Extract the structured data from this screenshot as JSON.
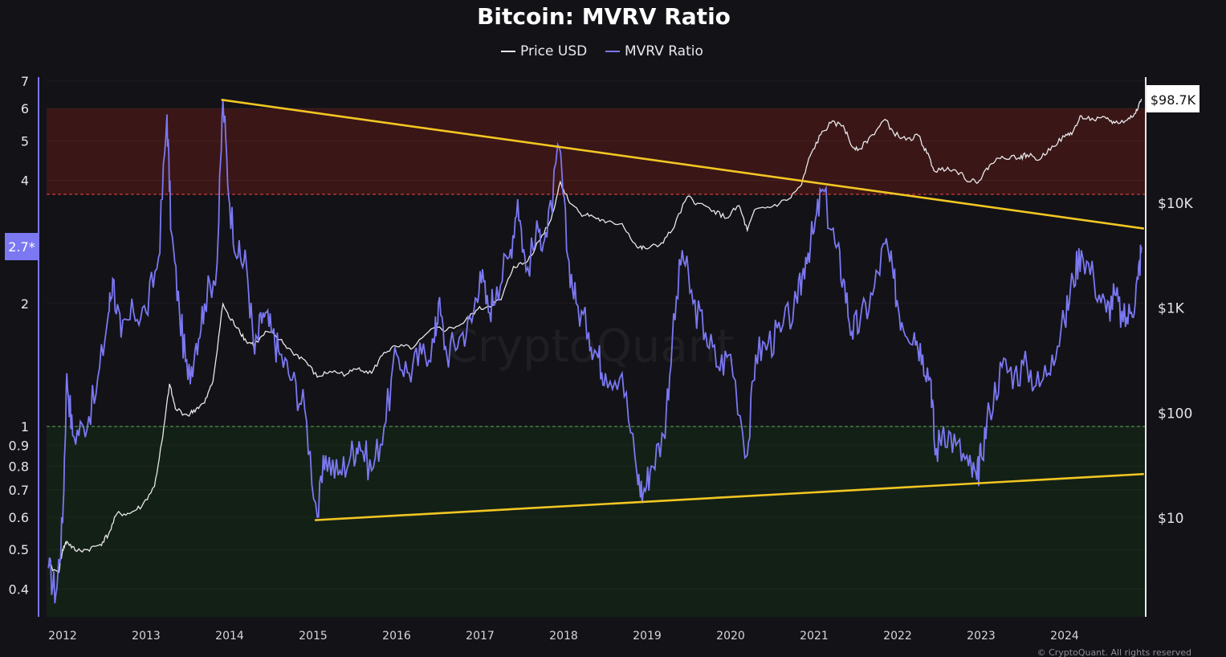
{
  "chart_data": {
    "type": "line",
    "title": "Bitcoin: MVRV Ratio",
    "legend": [
      "Price USD",
      "MVRV Ratio"
    ],
    "legend_position": "top-center",
    "x_ticks": [
      "2012",
      "2013",
      "2014",
      "2015",
      "2016",
      "2017",
      "2018",
      "2019",
      "2020",
      "2021",
      "2022",
      "2023",
      "2024"
    ],
    "xlim": [
      2011.8,
      2024.95
    ],
    "y_left": {
      "label": "",
      "scale": "log",
      "range": [
        0.36,
        7.0
      ],
      "ticks": [
        {
          "v": 7,
          "t": "7"
        },
        {
          "v": 6,
          "t": "6"
        },
        {
          "v": 5,
          "t": "5"
        },
        {
          "v": 4,
          "t": "4"
        },
        {
          "v": 2,
          "t": "2"
        },
        {
          "v": 1,
          "t": "1"
        },
        {
          "v": 0.9,
          "t": "0.9"
        },
        {
          "v": 0.8,
          "t": "0.8"
        },
        {
          "v": 0.7,
          "t": "0.7"
        },
        {
          "v": 0.6,
          "t": "0.6"
        },
        {
          "v": 0.5,
          "t": "0.5"
        },
        {
          "v": 0.4,
          "t": "0.4"
        }
      ]
    },
    "y_right": {
      "label": "",
      "scale": "log",
      "ticks": [
        {
          "v": 10000,
          "t": "$10K"
        },
        {
          "v": 1000,
          "t": "$1K"
        },
        {
          "v": 100,
          "t": "$100"
        },
        {
          "v": 10,
          "t": "$10"
        }
      ]
    },
    "zones": [
      {
        "name": "overvalued",
        "from": 3.7,
        "to": 6.0,
        "color": "#3a1616"
      },
      {
        "name": "undervalued",
        "from": 0.34,
        "to": 1.0,
        "color": "#132016"
      }
    ],
    "trendlines": [
      {
        "name": "upper",
        "from": [
          2013.9,
          6.3
        ],
        "to": [
          2024.95,
          3.05
        ],
        "color": "#f2c623"
      },
      {
        "name": "lower",
        "from": [
          2015.02,
          0.59
        ],
        "to": [
          2024.95,
          0.765
        ],
        "color": "#f2c623"
      }
    ],
    "current_mvrv": "2.7*",
    "current_price": "$98.7K",
    "series": [
      {
        "name": "MVRV Ratio",
        "axis": "left",
        "color": "#7b78f2",
        "points": [
          [
            2011.83,
            0.45
          ],
          [
            2011.92,
            0.39
          ],
          [
            2012.0,
            0.58
          ],
          [
            2012.05,
            1.35
          ],
          [
            2012.12,
            0.95
          ],
          [
            2012.25,
            1.0
          ],
          [
            2012.4,
            1.2
          ],
          [
            2012.55,
            1.9
          ],
          [
            2012.6,
            2.3
          ],
          [
            2012.7,
            1.65
          ],
          [
            2012.85,
            1.9
          ],
          [
            2013.0,
            1.9
          ],
          [
            2013.15,
            2.6
          ],
          [
            2013.25,
            5.8
          ],
          [
            2013.3,
            3.0
          ],
          [
            2013.4,
            1.9
          ],
          [
            2013.5,
            1.3
          ],
          [
            2013.6,
            1.6
          ],
          [
            2013.7,
            2.0
          ],
          [
            2013.85,
            2.5
          ],
          [
            2013.92,
            6.3
          ],
          [
            2014.0,
            3.5
          ],
          [
            2014.1,
            2.6
          ],
          [
            2014.2,
            2.5
          ],
          [
            2014.3,
            1.5
          ],
          [
            2014.4,
            1.9
          ],
          [
            2014.5,
            1.7
          ],
          [
            2014.6,
            1.5
          ],
          [
            2014.75,
            1.3
          ],
          [
            2014.9,
            1.1
          ],
          [
            2015.05,
            0.6
          ],
          [
            2015.15,
            0.85
          ],
          [
            2015.3,
            0.76
          ],
          [
            2015.45,
            0.85
          ],
          [
            2015.55,
            0.92
          ],
          [
            2015.7,
            0.78
          ],
          [
            2015.85,
            1.0
          ],
          [
            2016.0,
            1.5
          ],
          [
            2016.15,
            1.35
          ],
          [
            2016.3,
            1.5
          ],
          [
            2016.45,
            1.6
          ],
          [
            2016.5,
            2.0
          ],
          [
            2016.6,
            1.5
          ],
          [
            2016.75,
            1.65
          ],
          [
            2016.9,
            1.8
          ],
          [
            2017.0,
            2.4
          ],
          [
            2017.1,
            1.9
          ],
          [
            2017.2,
            2.2
          ],
          [
            2017.35,
            2.6
          ],
          [
            2017.45,
            3.6
          ],
          [
            2017.55,
            2.4
          ],
          [
            2017.7,
            3.0
          ],
          [
            2017.8,
            2.9
          ],
          [
            2017.95,
            4.8
          ],
          [
            2018.05,
            2.6
          ],
          [
            2018.15,
            2.0
          ],
          [
            2018.3,
            1.7
          ],
          [
            2018.4,
            1.5
          ],
          [
            2018.5,
            1.35
          ],
          [
            2018.7,
            1.35
          ],
          [
            2018.88,
            0.76
          ],
          [
            2018.95,
            0.68
          ],
          [
            2019.05,
            0.8
          ],
          [
            2019.2,
            0.95
          ],
          [
            2019.3,
            1.6
          ],
          [
            2019.42,
            2.7
          ],
          [
            2019.55,
            2.0
          ],
          [
            2019.7,
            1.7
          ],
          [
            2019.85,
            1.4
          ],
          [
            2020.0,
            1.5
          ],
          [
            2020.2,
            0.85
          ],
          [
            2020.3,
            1.5
          ],
          [
            2020.45,
            1.6
          ],
          [
            2020.6,
            1.7
          ],
          [
            2020.8,
            2.0
          ],
          [
            2020.9,
            2.6
          ],
          [
            2021.0,
            3.0
          ],
          [
            2021.1,
            3.8
          ],
          [
            2021.25,
            2.8
          ],
          [
            2021.35,
            2.3
          ],
          [
            2021.45,
            1.7
          ],
          [
            2021.55,
            1.8
          ],
          [
            2021.7,
            2.1
          ],
          [
            2021.85,
            2.8
          ],
          [
            2021.95,
            2.3
          ],
          [
            2022.05,
            1.8
          ],
          [
            2022.2,
            1.7
          ],
          [
            2022.3,
            1.5
          ],
          [
            2022.4,
            1.3
          ],
          [
            2022.45,
            0.85
          ],
          [
            2022.55,
            1.0
          ],
          [
            2022.7,
            0.9
          ],
          [
            2022.85,
            0.8
          ],
          [
            2022.95,
            0.74
          ],
          [
            2023.0,
            0.85
          ],
          [
            2023.1,
            1.1
          ],
          [
            2023.25,
            1.4
          ],
          [
            2023.4,
            1.35
          ],
          [
            2023.55,
            1.4
          ],
          [
            2023.7,
            1.25
          ],
          [
            2023.85,
            1.5
          ],
          [
            2024.0,
            1.8
          ],
          [
            2024.1,
            2.3
          ],
          [
            2024.2,
            2.7
          ],
          [
            2024.35,
            2.3
          ],
          [
            2024.5,
            1.9
          ],
          [
            2024.6,
            2.1
          ],
          [
            2024.7,
            1.8
          ],
          [
            2024.8,
            1.9
          ],
          [
            2024.88,
            2.3
          ],
          [
            2024.92,
            2.75
          ]
        ]
      },
      {
        "name": "Price USD",
        "axis": "right",
        "color": "#e8e8ea",
        "points": [
          [
            2011.83,
            3.5
          ],
          [
            2011.95,
            3.0
          ],
          [
            2012.0,
            5.0
          ],
          [
            2012.05,
            6.0
          ],
          [
            2012.15,
            4.9
          ],
          [
            2012.3,
            5.0
          ],
          [
            2012.45,
            5.6
          ],
          [
            2012.55,
            7.0
          ],
          [
            2012.65,
            11
          ],
          [
            2012.8,
            11
          ],
          [
            2012.95,
            13
          ],
          [
            2013.1,
            20
          ],
          [
            2013.2,
            60
          ],
          [
            2013.28,
            190
          ],
          [
            2013.35,
            110
          ],
          [
            2013.5,
            95
          ],
          [
            2013.6,
            110
          ],
          [
            2013.7,
            125
          ],
          [
            2013.8,
            200
          ],
          [
            2013.92,
            1100
          ],
          [
            2014.0,
            800
          ],
          [
            2014.1,
            650
          ],
          [
            2014.2,
            480
          ],
          [
            2014.3,
            450
          ],
          [
            2014.45,
            600
          ],
          [
            2014.6,
            500
          ],
          [
            2014.75,
            380
          ],
          [
            2014.9,
            320
          ],
          [
            2015.05,
            220
          ],
          [
            2015.2,
            250
          ],
          [
            2015.4,
            235
          ],
          [
            2015.55,
            270
          ],
          [
            2015.7,
            240
          ],
          [
            2015.85,
            380
          ],
          [
            2016.0,
            430
          ],
          [
            2016.2,
            420
          ],
          [
            2016.45,
            650
          ],
          [
            2016.6,
            620
          ],
          [
            2016.8,
            720
          ],
          [
            2016.95,
            950
          ],
          [
            2017.1,
            1050
          ],
          [
            2017.25,
            1200
          ],
          [
            2017.4,
            2500
          ],
          [
            2017.55,
            2700
          ],
          [
            2017.7,
            4300
          ],
          [
            2017.85,
            7000
          ],
          [
            2017.96,
            16000
          ],
          [
            2018.05,
            11000
          ],
          [
            2018.2,
            8000
          ],
          [
            2018.35,
            7500
          ],
          [
            2018.5,
            6500
          ],
          [
            2018.7,
            6400
          ],
          [
            2018.88,
            3800
          ],
          [
            2018.98,
            3700
          ],
          [
            2019.15,
            4000
          ],
          [
            2019.3,
            5500
          ],
          [
            2019.48,
            11500
          ],
          [
            2019.6,
            10000
          ],
          [
            2019.8,
            8500
          ],
          [
            2019.95,
            7200
          ],
          [
            2020.1,
            9500
          ],
          [
            2020.2,
            5500
          ],
          [
            2020.3,
            8800
          ],
          [
            2020.5,
            9300
          ],
          [
            2020.7,
            11000
          ],
          [
            2020.85,
            15000
          ],
          [
            2020.95,
            28000
          ],
          [
            2021.08,
            45000
          ],
          [
            2021.2,
            58000
          ],
          [
            2021.35,
            55000
          ],
          [
            2021.45,
            35000
          ],
          [
            2021.55,
            33000
          ],
          [
            2021.7,
            45000
          ],
          [
            2021.85,
            63000
          ],
          [
            2021.95,
            47000
          ],
          [
            2022.1,
            40000
          ],
          [
            2022.25,
            44000
          ],
          [
            2022.35,
            30000
          ],
          [
            2022.45,
            20000
          ],
          [
            2022.6,
            22000
          ],
          [
            2022.75,
            19500
          ],
          [
            2022.87,
            16000
          ],
          [
            2022.98,
            16500
          ],
          [
            2023.1,
            23000
          ],
          [
            2023.25,
            28000
          ],
          [
            2023.45,
            27000
          ],
          [
            2023.55,
            29000
          ],
          [
            2023.7,
            26000
          ],
          [
            2023.85,
            35000
          ],
          [
            2024.0,
            43000
          ],
          [
            2024.1,
            48000
          ],
          [
            2024.2,
            68000
          ],
          [
            2024.35,
            62000
          ],
          [
            2024.5,
            64000
          ],
          [
            2024.6,
            58000
          ],
          [
            2024.75,
            62000
          ],
          [
            2024.85,
            72000
          ],
          [
            2024.92,
            98700
          ]
        ]
      }
    ]
  },
  "watermark": "CryptoQuant",
  "copyright": "© CryptoQuant. All rights reserved"
}
